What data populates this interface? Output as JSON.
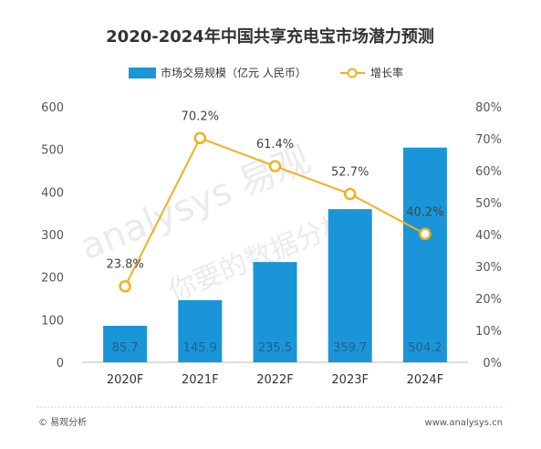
{
  "chart_data": {
    "type": "bar",
    "title": "2020-2024年中国共享充电宝市场潜力预测",
    "categories": [
      "2020F",
      "2021F",
      "2022F",
      "2023F",
      "2024F"
    ],
    "series": [
      {
        "name": "市场交易规模（亿元 人民币）",
        "type": "bar",
        "axis": "left",
        "values": [
          85.7,
          145.9,
          235.5,
          359.7,
          504.2
        ],
        "labels": [
          "85.7",
          "145.9",
          "235.5",
          "359.7",
          "504.2"
        ]
      },
      {
        "name": "增长率",
        "type": "line",
        "axis": "right",
        "values": [
          23.8,
          70.2,
          61.4,
          52.7,
          40.2
        ],
        "labels": [
          "23.8%",
          "70.2%",
          "61.4%",
          "52.7%",
          "40.2%"
        ]
      }
    ],
    "ylim_left": [
      0,
      600
    ],
    "yticks_left": [
      "0",
      "100",
      "200",
      "300",
      "400",
      "500",
      "600"
    ],
    "ylim_right": [
      0,
      80
    ],
    "yticks_right": [
      "0%",
      "10%",
      "20%",
      "30%",
      "40%",
      "50%",
      "60%",
      "70%",
      "80%"
    ],
    "legend_position": "top-center",
    "grid": false
  },
  "colors": {
    "bar": "#1a96d8",
    "line": "#f2b01e",
    "marker_fill": "#ffffff"
  },
  "footer": {
    "source": "© 易观分析",
    "url": "www.analysys.cn"
  }
}
